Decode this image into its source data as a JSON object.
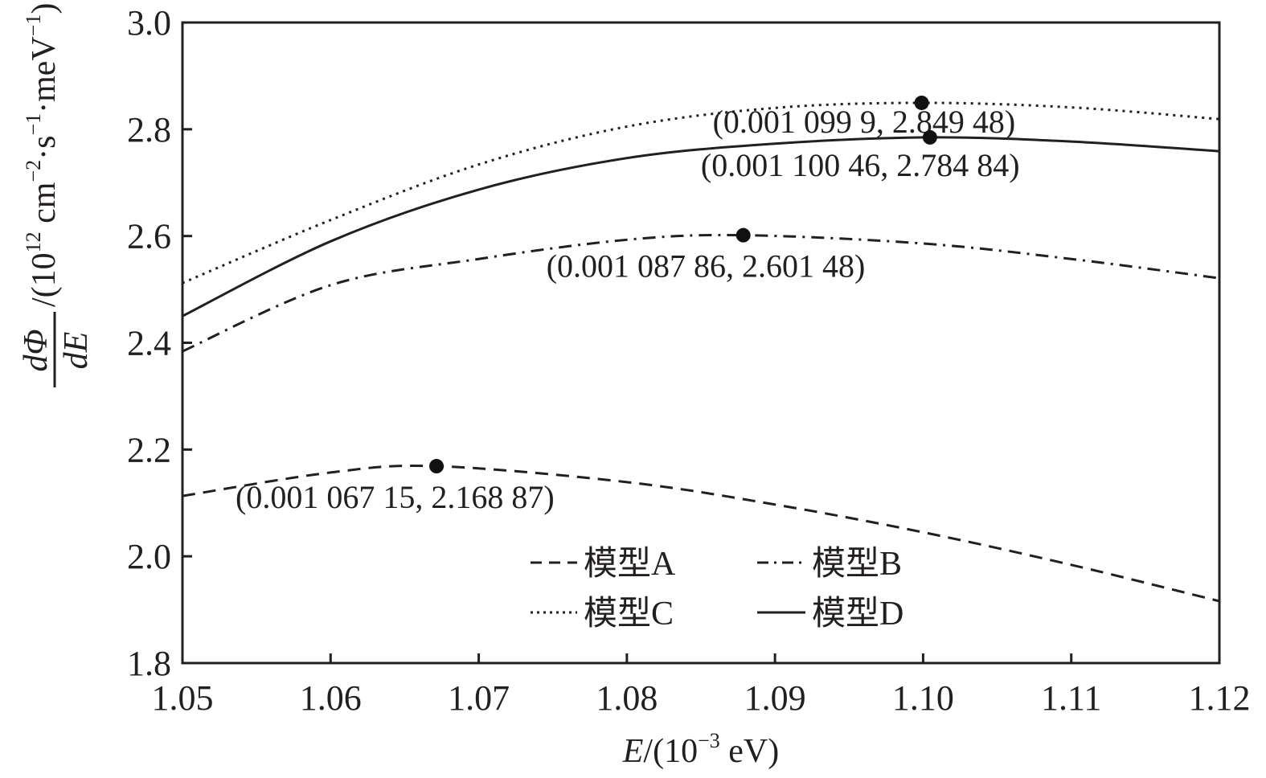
{
  "chart_data": {
    "type": "line",
    "title": "",
    "xlabel": "E/(10⁻³ eV)",
    "xlabel_parts": {
      "var": "E",
      "rest": "/(10",
      "sup": "−3",
      "unit": " eV)"
    },
    "ylabel_parts": {
      "num": "dΦ",
      "den": "dE",
      "rest": "/(10",
      "sup1": "12",
      "mid1": " cm",
      "sup2": "−2",
      "mid2": "·s",
      "sup3": "−1",
      "mid3": "·meV",
      "sup4": "−1",
      "end": ")"
    },
    "xlim": [
      1.05,
      1.12
    ],
    "ylim": [
      1.8,
      3.0
    ],
    "xticks": [
      "1.05",
      "1.06",
      "1.07",
      "1.08",
      "1.09",
      "1.10",
      "1.11",
      "1.12"
    ],
    "yticks": [
      "1.8",
      "2.0",
      "2.2",
      "2.4",
      "2.6",
      "2.8",
      "3.0"
    ],
    "grid": false,
    "legend_position": "bottom-center",
    "series": [
      {
        "name": "模型A",
        "style": "dashed",
        "x": [
          1.05,
          1.06,
          1.06715,
          1.08,
          1.09,
          1.1,
          1.11,
          1.12
        ],
        "y": [
          2.113,
          2.157,
          2.16887,
          2.139,
          2.097,
          2.045,
          1.984,
          1.916
        ],
        "peak": {
          "x": 1.06715,
          "y": 2.16887,
          "label": "(0.001 067 15, 2.168 87)"
        }
      },
      {
        "name": "模型B",
        "style": "dashdot",
        "x": [
          1.05,
          1.06,
          1.07,
          1.08,
          1.08786,
          1.1,
          1.11,
          1.12
        ],
        "y": [
          2.384,
          2.508,
          2.557,
          2.593,
          2.60148,
          2.586,
          2.557,
          2.521
        ],
        "peak": {
          "x": 1.08786,
          "y": 2.60148,
          "label": "(0.001 087 86, 2.601 48)"
        }
      },
      {
        "name": "模型C",
        "style": "dotted",
        "x": [
          1.05,
          1.06,
          1.07,
          1.08,
          1.09,
          1.0999,
          1.11,
          1.12
        ],
        "y": [
          2.512,
          2.63,
          2.734,
          2.805,
          2.84,
          2.84948,
          2.841,
          2.819
        ],
        "peak": {
          "x": 1.0999,
          "y": 2.84948,
          "label": "(0.001 099 9, 2.849 48)"
        }
      },
      {
        "name": "模型D",
        "style": "solid",
        "x": [
          1.05,
          1.06,
          1.07,
          1.08,
          1.09,
          1.10046,
          1.11,
          1.12
        ],
        "y": [
          2.45,
          2.59,
          2.687,
          2.746,
          2.773,
          2.78484,
          2.777,
          2.759
        ],
        "peak": {
          "x": 1.10046,
          "y": 2.78484,
          "label": "(0.001 100 46, 2.784 84)"
        }
      }
    ]
  }
}
